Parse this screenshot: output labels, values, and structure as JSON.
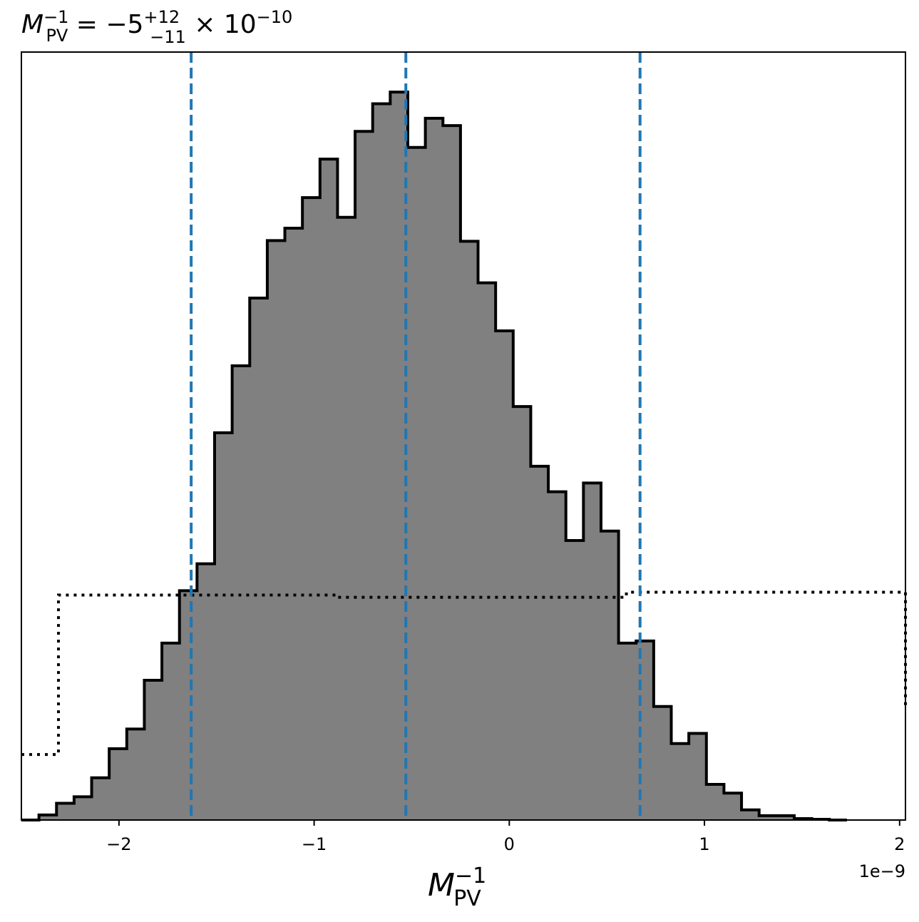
{
  "chart_data": {
    "type": "histogram",
    "title": {
      "lhs_base": "M",
      "lhs_sup": "−1",
      "lhs_sub": "PV",
      "eq": " = −5",
      "err_plus": "+12",
      "err_minus": "−11",
      "times": " × 10",
      "exp": "−10"
    },
    "xlabel": {
      "base": "M",
      "sup": "−1",
      "sub": "PV"
    },
    "x_offset_label": "1e−9",
    "x_scale": 1e-09,
    "xlim": [
      -2.5,
      2.03
    ],
    "ylim": [
      0,
      1.055
    ],
    "x_ticks": [
      {
        "value": -2,
        "label": "−2"
      },
      {
        "value": -1,
        "label": "−1"
      },
      {
        "value": 0,
        "label": "0"
      },
      {
        "value": 1,
        "label": "1"
      },
      {
        "value": 2,
        "label": "2"
      }
    ],
    "bin_edges": [
      -2.5,
      -2.41,
      -2.32,
      -2.23,
      -2.14,
      -2.05,
      -1.96,
      -1.87,
      -1.78,
      -1.69,
      -1.6,
      -1.51,
      -1.42,
      -1.33,
      -1.24,
      -1.15,
      -1.06,
      -0.97,
      -0.88,
      -0.79,
      -0.7,
      -0.61,
      -0.52,
      -0.43,
      -0.34,
      -0.25,
      -0.16,
      -0.07,
      0.02,
      0.11,
      0.2,
      0.29,
      0.38,
      0.47,
      0.56,
      0.65,
      0.74,
      0.83,
      0.92,
      1.01,
      1.1,
      1.19,
      1.28,
      1.37,
      1.46,
      1.55,
      1.64,
      1.73
    ],
    "counts": [
      0.0,
      0.007,
      0.023,
      0.032,
      0.058,
      0.098,
      0.125,
      0.192,
      0.243,
      0.315,
      0.352,
      0.532,
      0.624,
      0.717,
      0.796,
      0.813,
      0.855,
      0.908,
      0.828,
      0.946,
      0.984,
      1.0,
      0.924,
      0.964,
      0.954,
      0.795,
      0.738,
      0.672,
      0.568,
      0.486,
      0.451,
      0.384,
      0.463,
      0.397,
      0.243,
      0.246,
      0.156,
      0.105,
      0.119,
      0.049,
      0.037,
      0.014,
      0.006,
      0.006,
      0.002,
      0.001,
      0.0
    ],
    "fill_color": "#808080",
    "edge_color": "#000000",
    "quantile_lines": {
      "values": [
        -1.63,
        -0.53,
        0.67
      ],
      "color": "#1f77b4",
      "style": "dashed"
    },
    "prior_curve": {
      "x": [
        -2.5,
        -2.31,
        -2.31,
        -0.88,
        -0.88,
        0.6,
        0.6,
        2.03,
        2.03
      ],
      "y": [
        0.09,
        0.09,
        0.309,
        0.309,
        0.306,
        0.306,
        0.313,
        0.313,
        0.154
      ],
      "color": "#000000",
      "style": "dotted"
    },
    "grid": false,
    "legend": "none"
  }
}
